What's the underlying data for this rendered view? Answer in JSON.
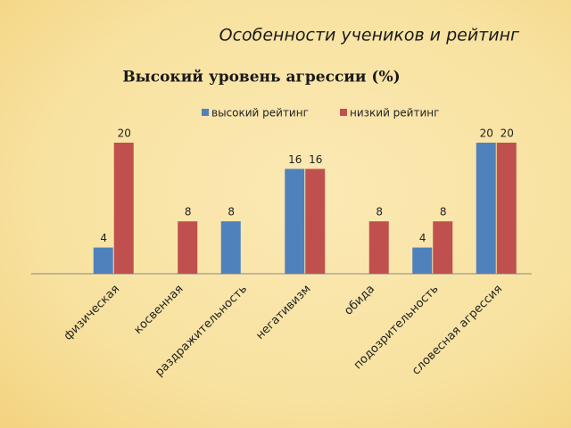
{
  "header": {
    "title": "Особенности учеников и рейтинг"
  },
  "chart_data": {
    "type": "bar",
    "title": "Высокий уровень агрессии (%)",
    "categories": [
      "физическая",
      "косвенная",
      "раздражительность",
      "негативизм",
      "обида",
      "подозрительность",
      "словесная агрессия"
    ],
    "series": [
      {
        "name": "высокий рейтинг",
        "color": "#4f81bd",
        "values": [
          4,
          null,
          8,
          16,
          null,
          4,
          20
        ]
      },
      {
        "name": "низкий рейтинг",
        "color": "#c0504d",
        "values": [
          20,
          8,
          null,
          16,
          8,
          8,
          20
        ]
      }
    ],
    "legend": "top"
  }
}
